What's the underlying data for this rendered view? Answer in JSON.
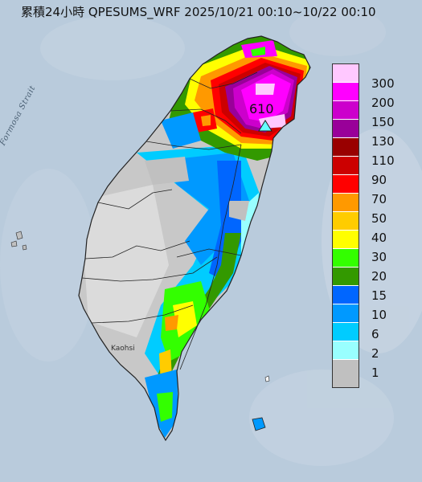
{
  "title": "累積24小時 QPESUMS_WRF 2025/10/21 00:10~10/22 00:10",
  "sea_label": "Formosa Strait",
  "city_label": "Kaohsi",
  "max_value": "610",
  "colors": {
    "sea": "#b9cbdc",
    "land": "#c8c8c8",
    "boundary": "#222222"
  },
  "legend": {
    "items": [
      {
        "label": "300",
        "color": "#ffc8ff"
      },
      {
        "label": "200",
        "color": "#ff00ff"
      },
      {
        "label": "150",
        "color": "#cc00cc"
      },
      {
        "label": "130",
        "color": "#990099"
      },
      {
        "label": "110",
        "color": "#990000"
      },
      {
        "label": "90",
        "color": "#cc0000"
      },
      {
        "label": "70",
        "color": "#ff0000"
      },
      {
        "label": "50",
        "color": "#ff9900"
      },
      {
        "label": "40",
        "color": "#ffcc00"
      },
      {
        "label": "30",
        "color": "#ffff00"
      },
      {
        "label": "20",
        "color": "#33ff00"
      },
      {
        "label": "15",
        "color": "#339900"
      },
      {
        "label": "10",
        "color": "#0066ff"
      },
      {
        "label": "6",
        "color": "#0099ff"
      },
      {
        "label": "2",
        "color": "#00ccff"
      },
      {
        "label": "1",
        "color": "#99ffff"
      },
      {
        "label": "",
        "color": "#c0c0c0"
      }
    ]
  }
}
